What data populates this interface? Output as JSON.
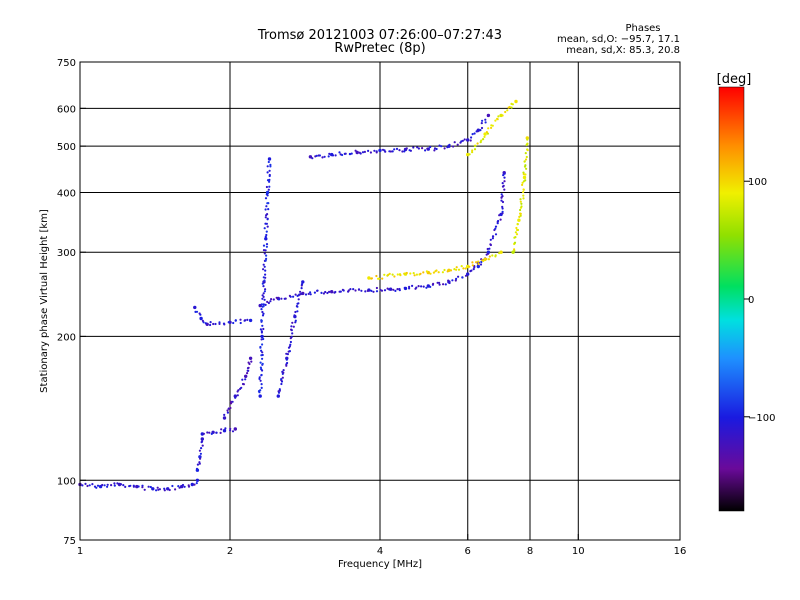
{
  "chart_data": {
    "type": "scatter",
    "title": "Tromsø 20121003 07:26:00–07:27:43",
    "subtitle": "RwPretec (8p)",
    "stats": {
      "header": "Phases",
      "line1": "mean, sd,O: −95.7, 17.1",
      "line2": "mean, sd,X: 85.3, 20.8"
    },
    "xlabel": "Frequency [MHz]",
    "ylabel": "Stationary phase Virtual Height [km]",
    "x_scale": "log",
    "y_scale": "log",
    "xlim": [
      1,
      16
    ],
    "ylim": [
      75,
      750
    ],
    "x_ticks": [
      1,
      2,
      4,
      6,
      8,
      10,
      16
    ],
    "x_tick_labels": [
      "1",
      "2",
      "4",
      "6",
      "8",
      "10",
      "16"
    ],
    "y_ticks": [
      75,
      100,
      200,
      300,
      400,
      500,
      600,
      750
    ],
    "y_tick_labels": [
      "75",
      "100",
      "200",
      "300",
      "400",
      "500",
      "600",
      "750"
    ],
    "grid": true,
    "colorbar": {
      "label": "[deg]",
      "range": [
        -180,
        180
      ],
      "ticks": [
        100,
        0,
        -100
      ],
      "tick_labels": [
        "100",
        "0",
        "−100"
      ]
    },
    "traces": [
      {
        "x": [
          1.0,
          1.1,
          1.2,
          1.3,
          1.4,
          1.5,
          1.6,
          1.68,
          1.72
        ],
        "y": [
          98,
          97,
          98,
          97,
          96,
          96,
          97,
          98,
          100
        ],
        "phase": -110
      },
      {
        "x": [
          1.72,
          1.74,
          1.76
        ],
        "y": [
          105,
          112,
          122
        ],
        "phase": -110
      },
      {
        "x": [
          1.76,
          1.85,
          1.95,
          2.05
        ],
        "y": [
          125,
          126,
          127,
          128
        ],
        "phase": -110
      },
      {
        "x": [
          1.95,
          2.05,
          2.15,
          2.2
        ],
        "y": [
          135,
          150,
          165,
          180
        ],
        "phase": -120
      },
      {
        "x": [
          1.7,
          1.75,
          1.8,
          2.0,
          2.2
        ],
        "y": [
          230,
          218,
          212,
          214,
          216
        ],
        "phase": -110
      },
      {
        "x": [
          2.3,
          2.5,
          2.8,
          3.2,
          3.8,
          4.2,
          4.5,
          5.0,
          5.5,
          6.0,
          6.3
        ],
        "y": [
          232,
          240,
          246,
          248,
          250,
          251,
          252,
          255,
          260,
          270,
          285
        ],
        "phase": -110
      },
      {
        "x": [
          2.3,
          2.32,
          2.34,
          2.36,
          2.38,
          2.4
        ],
        "y": [
          150,
          200,
          260,
          320,
          400,
          470
        ],
        "phase": -100
      },
      {
        "x": [
          2.5,
          2.6,
          2.7,
          2.8
        ],
        "y": [
          150,
          180,
          220,
          260
        ],
        "phase": -110
      },
      {
        "x": [
          2.9,
          3.2,
          3.6,
          4.0,
          4.5,
          5.0,
          5.5,
          6.0,
          6.3,
          6.6
        ],
        "y": [
          475,
          480,
          485,
          490,
          492,
          493,
          500,
          515,
          540,
          580
        ],
        "phase": -110
      },
      {
        "x": [
          6.3,
          6.6,
          7.0,
          7.1
        ],
        "y": [
          280,
          300,
          360,
          440
        ],
        "phase": -110
      },
      {
        "x": [
          3.8,
          4.5,
          5.0,
          5.5,
          6.0,
          6.5,
          7.0
        ],
        "y": [
          265,
          270,
          272,
          275,
          280,
          290,
          300
        ],
        "phase": 95
      },
      {
        "x": [
          6.0,
          6.5,
          7.0,
          7.5
        ],
        "y": [
          480,
          530,
          580,
          620
        ],
        "phase": 90
      },
      {
        "x": [
          7.4,
          7.6,
          7.8,
          7.9
        ],
        "y": [
          300,
          350,
          430,
          520
        ],
        "phase": 85
      }
    ]
  }
}
